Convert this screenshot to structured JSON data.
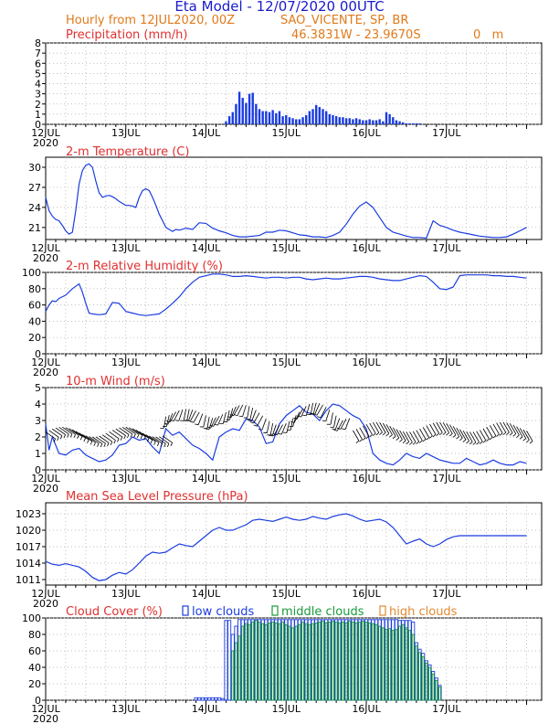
{
  "header": {
    "title": "Eta Model - 12/07/2020 00UTC",
    "subtitle_left": "Hourly from 12JUL2020, 00Z",
    "station": "SAO_VICENTE, SP, BR",
    "coords": "46.3831W - 23.9670S",
    "elevation": "0   m"
  },
  "colors": {
    "title": "#1a1acc",
    "subtitle": "#e07a1a",
    "label": "#e03030",
    "line": "#1a3ce0",
    "frame": "#000000",
    "middle": "#1a9a3a",
    "high": "#e08a30"
  },
  "date_labels": [
    "12JUL",
    "13JUL",
    "14JUL",
    "15JUL",
    "16JUL",
    "17JUL"
  ],
  "year_label": "2020",
  "chart_data": [
    {
      "id": "precip",
      "type": "bar",
      "title": "Precipitation (mm/h)",
      "ylim": [
        0,
        8
      ],
      "yticks": [
        0,
        1,
        2,
        3,
        4,
        5,
        6,
        7,
        8
      ],
      "ytick_labels": [
        "0",
        "1",
        "2",
        "3",
        "4",
        "5",
        "6",
        "7",
        "8"
      ],
      "time_unit": "hours from 12JUL2020 00Z",
      "x": [
        54,
        55,
        56,
        57,
        58,
        59,
        60,
        61,
        62,
        63,
        64,
        65,
        66,
        67,
        68,
        69,
        70,
        71,
        72,
        73,
        74,
        75,
        76,
        77,
        78,
        79,
        80,
        81,
        82,
        83,
        84,
        85,
        86,
        87,
        88,
        89,
        90,
        91,
        92,
        93,
        94,
        95,
        96,
        97,
        98,
        99,
        100,
        101,
        102,
        103,
        104,
        105,
        106,
        107,
        108,
        109,
        110,
        111,
        112
      ],
      "values": [
        0.3,
        0.8,
        1.2,
        2.0,
        3.2,
        2.6,
        2.1,
        3.0,
        3.1,
        2.0,
        1.5,
        1.3,
        1.3,
        1.2,
        1.4,
        1.1,
        1.3,
        0.8,
        0.9,
        0.7,
        0.6,
        0.5,
        0.5,
        0.7,
        0.9,
        1.3,
        1.5,
        1.9,
        1.7,
        1.5,
        1.3,
        1.0,
        0.9,
        0.8,
        0.7,
        0.7,
        0.6,
        0.6,
        0.5,
        0.6,
        0.5,
        0.4,
        0.4,
        0.5,
        0.4,
        0.4,
        0.5,
        0.3,
        1.2,
        1.0,
        0.7,
        0.4,
        0.3,
        0.2,
        0.1,
        0.1,
        0.1,
        0.1,
        0.1
      ]
    },
    {
      "id": "temp",
      "type": "line",
      "title": "2-m Temperature (C)",
      "ylim": [
        19.2,
        31.5
      ],
      "yticks": [
        21,
        24,
        27,
        30
      ],
      "ytick_labels": [
        "21",
        "24",
        "27",
        "30"
      ],
      "x": [
        0,
        1,
        2,
        3,
        4,
        5,
        6,
        7,
        8,
        9,
        10,
        11,
        12,
        13,
        14,
        15,
        16,
        17,
        18,
        19,
        20,
        21,
        22,
        23,
        24,
        25,
        26,
        27,
        28,
        29,
        30,
        31,
        32,
        33,
        34,
        35,
        36,
        37,
        38,
        39,
        40,
        42,
        44,
        46,
        48,
        50,
        52,
        54,
        56,
        58,
        60,
        62,
        64,
        66,
        68,
        70,
        72,
        74,
        76,
        78,
        80,
        82,
        84,
        86,
        88,
        90,
        92,
        94,
        96,
        98,
        100,
        102,
        104,
        106,
        108,
        110,
        112,
        114,
        116,
        118,
        120,
        122,
        124,
        126,
        128,
        130,
        132,
        134,
        136,
        138,
        140,
        142,
        144
      ],
      "values": [
        25.5,
        23.5,
        22.7,
        22.2,
        22.0,
        21.3,
        20.5,
        20.0,
        20.3,
        23.5,
        27.5,
        29.5,
        30.3,
        30.5,
        30.0,
        28.0,
        26.2,
        25.5,
        25.7,
        25.8,
        25.6,
        25.3,
        24.9,
        24.6,
        24.3,
        24.3,
        24.2,
        24.0,
        25.5,
        26.5,
        26.8,
        26.5,
        25.5,
        24.3,
        23.0,
        22.0,
        21.0,
        20.7,
        20.4,
        20.7,
        20.6,
        20.9,
        20.7,
        21.7,
        21.6,
        20.9,
        20.5,
        20.2,
        19.8,
        19.6,
        19.6,
        19.7,
        19.8,
        20.3,
        20.3,
        20.6,
        20.5,
        20.2,
        19.9,
        19.8,
        19.6,
        19.6,
        19.5,
        19.8,
        20.3,
        21.5,
        23.0,
        24.2,
        24.8,
        24.0,
        22.5,
        21.0,
        20.3,
        20.0,
        19.7,
        19.5,
        19.5,
        19.4,
        22.0,
        21.3,
        21.0,
        20.6,
        20.3,
        20.1,
        19.9,
        19.7,
        19.6,
        19.5,
        19.5,
        19.6,
        20.0,
        20.5,
        21.0
      ]
    },
    {
      "id": "rh",
      "type": "line",
      "title": "2-m Relative Humidity (%)",
      "ylim": [
        0,
        100
      ],
      "yticks": [
        0,
        20,
        40,
        60,
        80,
        100
      ],
      "ytick_labels": [
        "0",
        "20",
        "40",
        "60",
        "80",
        "100"
      ],
      "x": [
        0,
        1,
        2,
        3,
        4,
        6,
        8,
        10,
        11,
        12,
        13,
        14,
        16,
        18,
        20,
        22,
        24,
        26,
        28,
        30,
        32,
        34,
        35,
        36,
        38,
        40,
        42,
        44,
        46,
        48,
        50,
        52,
        54,
        56,
        58,
        60,
        62,
        64,
        66,
        68,
        70,
        72,
        74,
        76,
        78,
        80,
        82,
        84,
        86,
        88,
        90,
        92,
        94,
        96,
        98,
        100,
        102,
        104,
        106,
        108,
        110,
        112,
        114,
        116,
        118,
        120,
        122,
        124,
        126,
        128,
        130,
        132,
        134,
        136,
        138,
        140,
        142,
        144
      ],
      "values": [
        52,
        60,
        65,
        64,
        68,
        72,
        80,
        86,
        76,
        62,
        50,
        49,
        48,
        49,
        63,
        62,
        52,
        50,
        48,
        47,
        48,
        49,
        52,
        55,
        62,
        70,
        80,
        88,
        94,
        96,
        98,
        98,
        97,
        95,
        95,
        96,
        95,
        94,
        93,
        94,
        94,
        93,
        94,
        94,
        92,
        91,
        92,
        93,
        92,
        92,
        93,
        94,
        95,
        95,
        94,
        92,
        91,
        90,
        90,
        92,
        94,
        96,
        95,
        88,
        80,
        79,
        82,
        96,
        97,
        97,
        97,
        97,
        96,
        96,
        95,
        95,
        94,
        93
      ]
    },
    {
      "id": "wind",
      "type": "line",
      "title": "10-m Wind (m/s)",
      "ylim": [
        0,
        5
      ],
      "yticks": [
        0,
        1,
        2,
        3,
        4,
        5
      ],
      "ytick_labels": [
        "0",
        "1",
        "2",
        "3",
        "4",
        "5"
      ],
      "x": [
        0,
        1,
        2,
        3,
        4,
        6,
        8,
        10,
        12,
        14,
        16,
        18,
        20,
        22,
        24,
        26,
        28,
        30,
        32,
        34,
        36,
        38,
        40,
        42,
        44,
        46,
        48,
        50,
        52,
        54,
        56,
        58,
        60,
        62,
        64,
        66,
        68,
        70,
        72,
        74,
        76,
        78,
        80,
        82,
        84,
        86,
        88,
        90,
        92,
        94,
        96,
        98,
        100,
        102,
        104,
        106,
        108,
        110,
        112,
        114,
        116,
        118,
        120,
        122,
        124,
        126,
        128,
        130,
        132,
        134,
        136,
        138,
        140,
        142,
        144
      ],
      "values": [
        2.8,
        1.2,
        2.0,
        1.5,
        1.0,
        0.9,
        1.2,
        1.3,
        0.9,
        0.7,
        0.5,
        0.6,
        0.9,
        1.5,
        1.6,
        2.0,
        1.8,
        1.9,
        1.4,
        1.0,
        2.5,
        2.1,
        2.3,
        1.9,
        1.5,
        1.3,
        1.0,
        0.6,
        2.0,
        2.3,
        2.5,
        2.4,
        3.1,
        3.0,
        2.6,
        1.6,
        1.7,
        2.8,
        3.3,
        3.6,
        3.9,
        3.5,
        3.4,
        3.0,
        3.6,
        4.0,
        3.9,
        3.6,
        3.3,
        3.1,
        2.5,
        1.0,
        0.6,
        0.4,
        0.3,
        0.6,
        1.0,
        0.8,
        0.7,
        1.0,
        0.8,
        0.6,
        0.5,
        0.4,
        0.4,
        0.7,
        0.5,
        0.3,
        0.4,
        0.6,
        0.4,
        0.3,
        0.3,
        0.5,
        0.4
      ],
      "barbs_note": "wind barbs plotted hourly along the speed curve"
    },
    {
      "id": "mslp",
      "type": "line",
      "title": "Mean Sea Level Pressure (hPa)",
      "ylim": [
        1010,
        1025
      ],
      "yticks": [
        1011,
        1014,
        1017,
        1020,
        1023
      ],
      "ytick_labels": [
        "1011",
        "1014",
        "1017",
        "1020",
        "1023"
      ],
      "x": [
        0,
        2,
        4,
        6,
        8,
        10,
        12,
        14,
        16,
        18,
        20,
        22,
        24,
        26,
        28,
        30,
        32,
        34,
        36,
        38,
        40,
        42,
        44,
        46,
        48,
        50,
        52,
        54,
        56,
        58,
        60,
        62,
        64,
        66,
        68,
        70,
        72,
        74,
        76,
        78,
        80,
        82,
        84,
        86,
        88,
        90,
        92,
        94,
        96,
        98,
        100,
        102,
        104,
        106,
        108,
        110,
        112,
        114,
        116,
        118,
        120,
        122,
        124,
        126,
        128,
        130,
        132,
        134,
        136,
        138,
        140,
        142,
        144
      ],
      "values": [
        1014.3,
        1013.8,
        1013.6,
        1013.9,
        1013.6,
        1013.3,
        1012.5,
        1011.4,
        1010.8,
        1011.0,
        1011.8,
        1012.3,
        1012.0,
        1012.8,
        1014.0,
        1015.3,
        1016.0,
        1015.8,
        1016.0,
        1016.8,
        1017.5,
        1017.2,
        1017.0,
        1018.0,
        1019.0,
        1020.0,
        1020.5,
        1020.0,
        1020.0,
        1020.5,
        1021.0,
        1021.8,
        1022.0,
        1021.8,
        1021.6,
        1022.0,
        1022.4,
        1022.0,
        1021.8,
        1022.0,
        1022.5,
        1022.2,
        1022.0,
        1022.5,
        1022.8,
        1023.0,
        1022.6,
        1022.0,
        1021.6,
        1021.8,
        1022.0,
        1021.5,
        1020.5,
        1019.0,
        1017.5,
        1018.0,
        1018.4,
        1017.5,
        1017.0,
        1017.5,
        1018.3,
        1018.8,
        1019.0,
        1019.0,
        1019.0,
        1019.0,
        1019.0,
        1019.0,
        1019.0,
        1019.0,
        1019.0,
        1019.0,
        1019.0
      ]
    },
    {
      "id": "cloud",
      "type": "bar",
      "title": "Cloud Cover (%)",
      "ylim": [
        0,
        100
      ],
      "yticks": [
        0,
        20,
        40,
        60,
        80,
        100
      ],
      "ytick_labels": [
        "0",
        "20",
        "40",
        "60",
        "80",
        "100"
      ],
      "legend": [
        {
          "name": "low clouds",
          "color": "#1a3ce0"
        },
        {
          "name": "middle clouds",
          "color": "#1a9a3a"
        },
        {
          "name": "high clouds",
          "color": "#e08a30"
        }
      ],
      "series": [
        {
          "name": "low clouds",
          "x": [
            45,
            46,
            47,
            48,
            49,
            50,
            51,
            52,
            53,
            54,
            55,
            56,
            57,
            58,
            59,
            60,
            61,
            62,
            63,
            64,
            65,
            66,
            67,
            68,
            69,
            70,
            71,
            72,
            73,
            74,
            75,
            76,
            77,
            78,
            79,
            80,
            81,
            82,
            83,
            84,
            85,
            86,
            87,
            88,
            89,
            90,
            91,
            92,
            93,
            94,
            95,
            96,
            97,
            98,
            99,
            100,
            101,
            102,
            103,
            104,
            105,
            106,
            107,
            108,
            109,
            110,
            111,
            112,
            113,
            114,
            115,
            116,
            117,
            118
          ],
          "values": [
            3,
            3,
            3,
            3,
            3,
            3,
            3,
            3,
            2,
            97,
            97,
            80,
            90,
            98,
            98,
            98,
            98,
            98,
            98,
            98,
            98,
            98,
            98,
            98,
            98,
            98,
            98,
            98,
            98,
            98,
            98,
            98,
            98,
            98,
            98,
            98,
            98,
            98,
            98,
            98,
            98,
            98,
            98,
            98,
            98,
            98,
            98,
            98,
            98,
            98,
            98,
            98,
            98,
            98,
            98,
            98,
            98,
            98,
            98,
            98,
            98,
            97,
            97,
            97,
            97,
            95,
            70,
            62,
            57,
            48,
            43,
            35,
            27,
            18
          ]
        },
        {
          "name": "middle clouds",
          "x": [
            56,
            57,
            58,
            59,
            60,
            61,
            62,
            63,
            64,
            65,
            66,
            67,
            68,
            69,
            70,
            71,
            72,
            73,
            74,
            75,
            76,
            77,
            78,
            79,
            80,
            81,
            82,
            83,
            84,
            85,
            86,
            87,
            88,
            89,
            90,
            91,
            92,
            93,
            94,
            95,
            96,
            97,
            98,
            99,
            100,
            101,
            102,
            103,
            104,
            105,
            106,
            107,
            108,
            109,
            110,
            111,
            112,
            113,
            114,
            115,
            116,
            117,
            118
          ],
          "values": [
            60,
            70,
            78,
            90,
            93,
            92,
            95,
            97,
            95,
            93,
            92,
            94,
            95,
            94,
            93,
            95,
            92,
            90,
            88,
            90,
            92,
            95,
            93,
            92,
            93,
            94,
            95,
            96,
            94,
            95,
            96,
            95,
            94,
            95,
            94,
            96,
            95,
            94,
            95,
            96,
            95,
            94,
            93,
            92,
            90,
            88,
            86,
            87,
            85,
            86,
            90,
            92,
            88,
            85,
            80,
            66,
            58,
            53,
            45,
            40,
            32,
            24,
            16
          ]
        },
        {
          "name": "high clouds",
          "x": [],
          "values": []
        }
      ]
    }
  ]
}
